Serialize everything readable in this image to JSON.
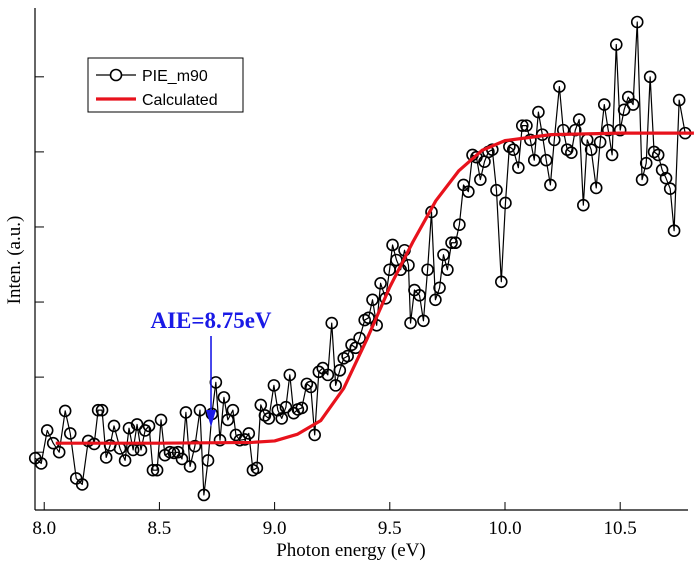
{
  "chart_data": {
    "type": "line",
    "xlabel": "Photon energy (eV)",
    "ylabel": "Inten. (a.u.)",
    "xlim": [
      7.96,
      10.79
    ],
    "ylim": [
      -0.77,
      5.89
    ],
    "xticks": [
      {
        "value": 8,
        "label": "8.0"
      },
      8.5,
      {
        "value": 9,
        "label": "9.0"
      },
      9.5,
      {
        "value": 10,
        "label": "10.0"
      },
      10.5
    ],
    "yticks": [
      0,
      1,
      2,
      3,
      4,
      5
    ],
    "legend": "upper-left",
    "annotation": {
      "text": "AIE=8.75eV",
      "x": 8.75,
      "color": "#1a1ae6"
    },
    "series": [
      {
        "name": "PIE_m90",
        "color": "#000000",
        "markers": true,
        "x": [
          7.961,
          7.987,
          8.013,
          8.039,
          8.065,
          8.091,
          8.113,
          8.139,
          8.165,
          8.191,
          8.217,
          8.234,
          8.251,
          8.269,
          8.286,
          8.303,
          8.329,
          8.351,
          8.368,
          8.386,
          8.403,
          8.42,
          8.438,
          8.455,
          8.472,
          8.49,
          8.507,
          8.524,
          8.546,
          8.563,
          8.581,
          8.598,
          8.615,
          8.633,
          8.654,
          8.676,
          8.693,
          8.711,
          8.728,
          8.745,
          8.763,
          8.78,
          8.797,
          8.819,
          8.832,
          8.849,
          8.871,
          8.888,
          8.906,
          8.923,
          8.94,
          8.958,
          8.975,
          8.997,
          9.014,
          9.031,
          9.049,
          9.066,
          9.083,
          9.101,
          9.118,
          9.14,
          9.157,
          9.174,
          9.192,
          9.209,
          9.231,
          9.248,
          9.265,
          9.283,
          9.3,
          9.317,
          9.334,
          9.352,
          9.369,
          9.391,
          9.408,
          9.425,
          9.443,
          9.46,
          9.482,
          9.499,
          9.512,
          9.529,
          9.547,
          9.564,
          9.581,
          9.59,
          9.607,
          9.629,
          9.646,
          9.664,
          9.681,
          9.698,
          9.716,
          9.733,
          9.75,
          9.768,
          9.785,
          9.802,
          9.82,
          9.841,
          9.859,
          9.876,
          9.893,
          9.911,
          9.928,
          9.945,
          9.963,
          9.984,
          10.002,
          10.019,
          10.036,
          10.058,
          10.075,
          10.093,
          10.11,
          10.127,
          10.145,
          10.162,
          10.179,
          10.197,
          10.214,
          10.236,
          10.253,
          10.27,
          10.288,
          10.305,
          10.322,
          10.34,
          10.357,
          10.374,
          10.396,
          10.413,
          10.431,
          10.448,
          10.465,
          10.483,
          10.5,
          10.517,
          10.535,
          10.556,
          10.574,
          10.595,
          10.613,
          10.63,
          10.647,
          10.665,
          10.682,
          10.699,
          10.717,
          10.734,
          10.756,
          10.782
        ],
        "values": [
          -0.08,
          -0.15,
          0.29,
          0.12,
          0,
          0.55,
          0.25,
          -0.35,
          -0.43,
          0.15,
          0.11,
          0.56,
          0.56,
          -0.07,
          0.09,
          0.35,
          0.05,
          -0.11,
          0.32,
          0.03,
          0.37,
          0.03,
          0.29,
          0.35,
          -0.24,
          -0.24,
          0.43,
          -0.04,
          0,
          -0.01,
          0,
          -0.09,
          0.53,
          -0.19,
          0.08,
          0.56,
          -0.57,
          -0.11,
          0.51,
          0.93,
          0.16,
          0.73,
          0.43,
          0.56,
          0.23,
          0.16,
          0.17,
          0.25,
          -0.24,
          -0.21,
          0.63,
          0.49,
          0.45,
          0.89,
          0.56,
          0.45,
          0.6,
          1.03,
          0.52,
          0.57,
          0.59,
          0.91,
          0.87,
          0.23,
          1.07,
          1.12,
          1.03,
          1.72,
          0.89,
          1.09,
          1.25,
          1.28,
          1.43,
          1.39,
          1.52,
          1.76,
          1.79,
          2.03,
          1.69,
          2.25,
          2.05,
          2.43,
          2.76,
          2.56,
          2.43,
          2.69,
          2.49,
          1.72,
          2.16,
          2.09,
          1.75,
          2.43,
          3.2,
          2.03,
          2.19,
          2.63,
          2.43,
          2.79,
          2.79,
          3.03,
          3.56,
          3.47,
          3.96,
          3.93,
          3.63,
          3.87,
          4,
          4.03,
          3.49,
          2.27,
          3.32,
          4.07,
          4.03,
          3.79,
          4.35,
          4.35,
          4.16,
          3.89,
          4.53,
          4.23,
          3.89,
          3.56,
          4.16,
          4.87,
          4.29,
          4.03,
          3.99,
          4.29,
          4.43,
          3.29,
          4.16,
          4.03,
          3.52,
          4.13,
          4.63,
          4.29,
          3.96,
          5.43,
          4.29,
          4.56,
          4.73,
          4.63,
          5.73,
          3.63,
          3.85,
          5,
          4,
          3.96,
          3.76,
          3.65,
          3.51,
          2.95,
          4.69,
          4.25
        ]
      },
      {
        "name": "Calculated",
        "color": "#e8121c",
        "markers": false,
        "x": [
          8.05,
          8.5,
          8.9,
          9.0,
          9.1,
          9.2,
          9.3,
          9.4,
          9.5,
          9.6,
          9.7,
          9.8,
          9.9,
          10.0,
          10.2,
          10.5,
          10.82
        ],
        "values": [
          0.12,
          0.12,
          0.13,
          0.15,
          0.24,
          0.42,
          0.85,
          1.5,
          2.2,
          2.8,
          3.35,
          3.75,
          4.02,
          4.15,
          4.23,
          4.25,
          4.25
        ]
      }
    ]
  }
}
